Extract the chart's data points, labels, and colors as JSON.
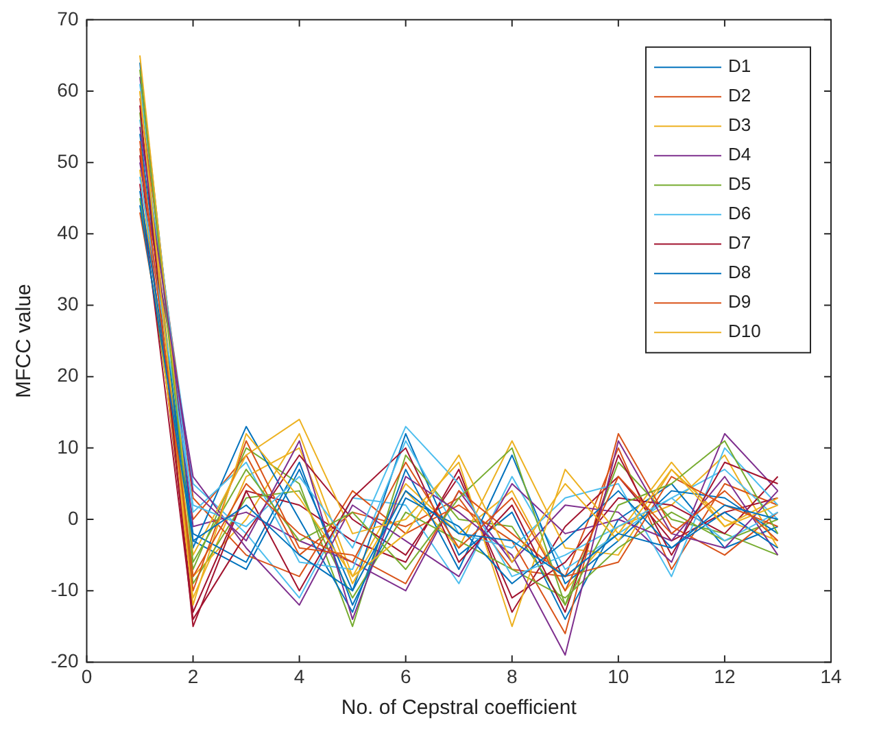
{
  "chart_data": {
    "type": "line",
    "xlabel": "No. of Cepstral coefficient",
    "ylabel": "MFCC value",
    "x": [
      1,
      2,
      3,
      4,
      5,
      6,
      7,
      8,
      9,
      10,
      11,
      12,
      13
    ],
    "xlim": [
      0,
      14
    ],
    "xticks": [
      0,
      2,
      4,
      6,
      8,
      10,
      12,
      14
    ],
    "ylim": [
      -20,
      70
    ],
    "yticks": [
      -20,
      -10,
      0,
      10,
      20,
      30,
      40,
      50,
      60,
      70
    ],
    "grid": false,
    "legend": "top right",
    "marker": "none",
    "line_style": "solid",
    "series": [
      {
        "name": "D1",
        "color": "#0072bd",
        "values": [
          44,
          -3,
          2,
          -5,
          -10,
          4,
          -2,
          -3,
          -8,
          -2,
          -4,
          2,
          0
        ]
      },
      {
        "name": "D2",
        "color": "#d95319",
        "values": [
          52,
          -8,
          5,
          -2,
          -6,
          8,
          -4,
          3,
          -10,
          6,
          -2,
          4,
          -3
        ]
      },
      {
        "name": "D3",
        "color": "#edb120",
        "values": [
          60,
          -12,
          12,
          3,
          -8,
          -2,
          9,
          -6,
          5,
          -3,
          7,
          -1,
          2
        ]
      },
      {
        "name": "D4",
        "color": "#7e2f8e",
        "values": [
          55,
          4,
          -3,
          11,
          -14,
          6,
          1,
          -5,
          -19,
          11,
          -2,
          -4,
          4
        ]
      },
      {
        "name": "D5",
        "color": "#77ac30",
        "values": [
          63,
          -6,
          7,
          -3,
          1,
          -7,
          3,
          10,
          -12,
          2,
          5,
          11,
          -2
        ]
      },
      {
        "name": "D6",
        "color": "#4dbeee",
        "values": [
          48,
          2,
          -1,
          6,
          -4,
          13,
          5,
          -8,
          -5,
          -1,
          3,
          -3,
          1
        ]
      },
      {
        "name": "D7",
        "color": "#a2142f",
        "values": [
          58,
          -15,
          4,
          -10,
          3,
          10,
          -6,
          2,
          -13,
          9,
          -5,
          8,
          5
        ]
      },
      {
        "name": "D8",
        "color": "#0072bd",
        "values": [
          46,
          -2,
          -6,
          8,
          -12,
          3,
          -1,
          -9,
          -3,
          4,
          -4,
          1,
          -4
        ]
      },
      {
        "name": "D9",
        "color": "#d95319",
        "values": [
          53,
          -10,
          11,
          -4,
          -5,
          -9,
          4,
          -2,
          -8,
          -6,
          6,
          2,
          -1
        ]
      },
      {
        "name": "D10",
        "color": "#edb120",
        "values": [
          65,
          -5,
          9,
          14,
          -2,
          0,
          8,
          -15,
          7,
          -2,
          8,
          -1,
          3
        ]
      },
      {
        "color": "#7e2f8e",
        "values": [
          50,
          6,
          -4,
          -12,
          2,
          -3,
          -8,
          5,
          -2,
          0,
          -3,
          6,
          -5
        ]
      },
      {
        "color": "#77ac30",
        "values": [
          57,
          -9,
          3,
          4,
          -11,
          1,
          -3,
          -7,
          -11,
          -4,
          1,
          -3,
          0
        ]
      },
      {
        "color": "#4dbeee",
        "values": [
          61,
          1,
          8,
          -6,
          -7,
          11,
          -2,
          -4,
          3,
          5,
          -8,
          10,
          2
        ]
      },
      {
        "color": "#a2142f",
        "values": [
          47,
          -14,
          -2,
          9,
          0,
          -5,
          6,
          -11,
          -6,
          3,
          2,
          -2,
          6
        ]
      },
      {
        "color": "#0072bd",
        "values": [
          54,
          -4,
          13,
          0,
          -13,
          7,
          -7,
          9,
          -9,
          -3,
          4,
          3,
          -2
        ]
      },
      {
        "color": "#d95319",
        "values": [
          59,
          3,
          -5,
          -8,
          4,
          -2,
          2,
          -3,
          -16,
          12,
          -1,
          -5,
          1
        ]
      },
      {
        "color": "#edb120",
        "values": [
          49,
          -11,
          6,
          10,
          -9,
          4,
          -4,
          11,
          -4,
          -5,
          7,
          0,
          -3
        ]
      },
      {
        "color": "#7e2f8e",
        "values": [
          62,
          -1,
          1,
          -3,
          -6,
          -10,
          4,
          -6,
          2,
          1,
          -6,
          12,
          4
        ]
      },
      {
        "color": "#77ac30",
        "values": [
          45,
          -7,
          10,
          5,
          -15,
          9,
          0,
          -1,
          -12,
          8,
          0,
          -2,
          -5
        ]
      },
      {
        "color": "#4dbeee",
        "values": [
          56,
          5,
          -2,
          -11,
          3,
          2,
          -9,
          6,
          -7,
          -2,
          3,
          7,
          0
        ]
      },
      {
        "color": "#a2142f",
        "values": [
          51,
          -13,
          4,
          2,
          -3,
          -6,
          7,
          -13,
          -1,
          6,
          -3,
          1,
          3
        ]
      },
      {
        "color": "#0072bd",
        "values": [
          64,
          -3,
          -7,
          7,
          -10,
          12,
          -5,
          1,
          -14,
          0,
          5,
          -4,
          -1
        ]
      },
      {
        "color": "#d95319",
        "values": [
          43,
          0,
          9,
          -5,
          1,
          -1,
          3,
          -7,
          -8,
          10,
          -7,
          5,
          2
        ]
      },
      {
        "color": "#edb120",
        "values": [
          60,
          -8,
          0,
          12,
          -8,
          5,
          -2,
          4,
          -10,
          -1,
          2,
          9,
          -4
        ]
      }
    ]
  }
}
